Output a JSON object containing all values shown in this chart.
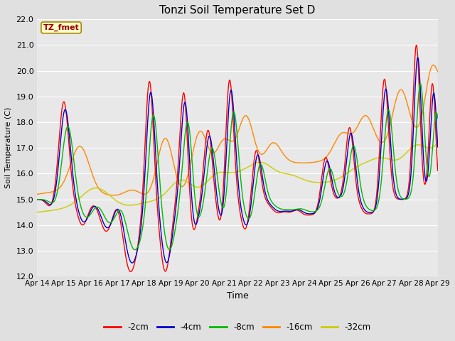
{
  "title": "Tonzi Soil Temperature Set D",
  "xlabel": "Time",
  "ylabel": "Soil Temperature (C)",
  "ylim": [
    12.0,
    22.0
  ],
  "yticks": [
    12.0,
    13.0,
    14.0,
    15.0,
    16.0,
    17.0,
    18.0,
    19.0,
    20.0,
    21.0,
    22.0
  ],
  "fig_bg_color": "#e0e0e0",
  "plot_bg_color": "#e8e8e8",
  "grid_color": "#ffffff",
  "series_colors": [
    "#ff0000",
    "#0000cc",
    "#00bb00",
    "#ff8800",
    "#cccc00"
  ],
  "series_labels": [
    "-2cm",
    "-4cm",
    "-8cm",
    "-16cm",
    "-32cm"
  ],
  "annotation_text": "TZ_fmet",
  "annotation_bg": "#ffffcc",
  "annotation_border": "#aa8800",
  "x_tick_labels": [
    "Apr 14",
    "Apr 15",
    "Apr 16",
    "Apr 17",
    "Apr 18",
    "Apr 19",
    "Apr 20",
    "Apr 21",
    "Apr 22",
    "Apr 23",
    "Apr 24",
    "Apr 25",
    "Apr 26",
    "Apr 27",
    "Apr 28",
    "Apr 29"
  ],
  "line_width": 1.0,
  "figsize": [
    6.4,
    4.8
  ],
  "dpi": 100
}
